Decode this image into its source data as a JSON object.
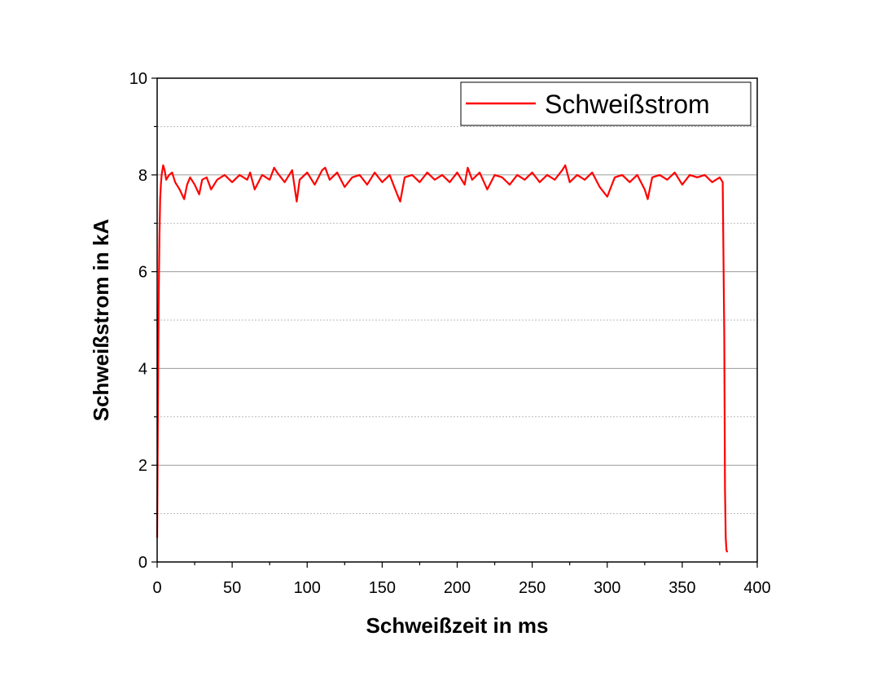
{
  "chart_data": {
    "type": "line",
    "title": "",
    "xlabel": "Schweißzeit in ms",
    "ylabel": "Schweißstrom in kA",
    "xlim": [
      0,
      400
    ],
    "ylim": [
      0,
      10
    ],
    "x_ticks": [
      "0",
      "50",
      "100",
      "150",
      "200",
      "250",
      "300",
      "350",
      "400"
    ],
    "y_ticks": [
      "0",
      "2",
      "4",
      "6",
      "8",
      "10"
    ],
    "grid": true,
    "legend_position": "top-right",
    "series": [
      {
        "name": "Schweißstrom",
        "color": "#ff0000",
        "x": [
          0,
          0.5,
          1,
          1.5,
          2,
          2.5,
          3,
          4,
          5,
          6,
          8,
          10,
          12,
          15,
          18,
          20,
          22,
          25,
          28,
          30,
          33,
          36,
          40,
          45,
          50,
          55,
          60,
          62,
          65,
          70,
          75,
          78,
          80,
          85,
          90,
          93,
          95,
          100,
          105,
          110,
          112,
          115,
          120,
          125,
          130,
          135,
          140,
          145,
          150,
          155,
          160,
          162,
          165,
          170,
          175,
          180,
          185,
          190,
          195,
          200,
          205,
          207,
          210,
          215,
          220,
          225,
          230,
          235,
          240,
          245,
          250,
          255,
          260,
          265,
          270,
          272,
          275,
          280,
          285,
          290,
          295,
          300,
          305,
          310,
          315,
          320,
          325,
          327,
          330,
          335,
          340,
          345,
          350,
          355,
          360,
          365,
          370,
          375,
          377,
          378,
          378.5,
          379,
          379.5,
          380
        ],
        "values": [
          0.5,
          3.0,
          5.3,
          6.7,
          7.5,
          7.8,
          8.0,
          8.2,
          8.1,
          7.9,
          8.0,
          8.05,
          7.85,
          7.7,
          7.5,
          7.8,
          7.95,
          7.8,
          7.6,
          7.9,
          7.95,
          7.7,
          7.9,
          8.0,
          7.85,
          8.0,
          7.9,
          8.05,
          7.7,
          8.0,
          7.9,
          8.15,
          8.05,
          7.85,
          8.1,
          7.45,
          7.9,
          8.05,
          7.8,
          8.1,
          8.15,
          7.9,
          8.05,
          7.75,
          7.95,
          8.0,
          7.8,
          8.05,
          7.85,
          8.0,
          7.6,
          7.45,
          7.95,
          8.0,
          7.85,
          8.05,
          7.9,
          8.0,
          7.85,
          8.05,
          7.8,
          8.15,
          7.9,
          8.05,
          7.7,
          8.0,
          7.95,
          7.8,
          8.0,
          7.9,
          8.05,
          7.85,
          8.0,
          7.9,
          8.1,
          8.2,
          7.85,
          8.0,
          7.9,
          8.05,
          7.75,
          7.55,
          7.95,
          8.0,
          7.85,
          8.0,
          7.7,
          7.5,
          7.95,
          8.0,
          7.9,
          8.05,
          7.8,
          8.0,
          7.95,
          8.0,
          7.85,
          7.95,
          7.85,
          4.7,
          1.5,
          0.5,
          0.25,
          0.2
        ]
      }
    ]
  }
}
